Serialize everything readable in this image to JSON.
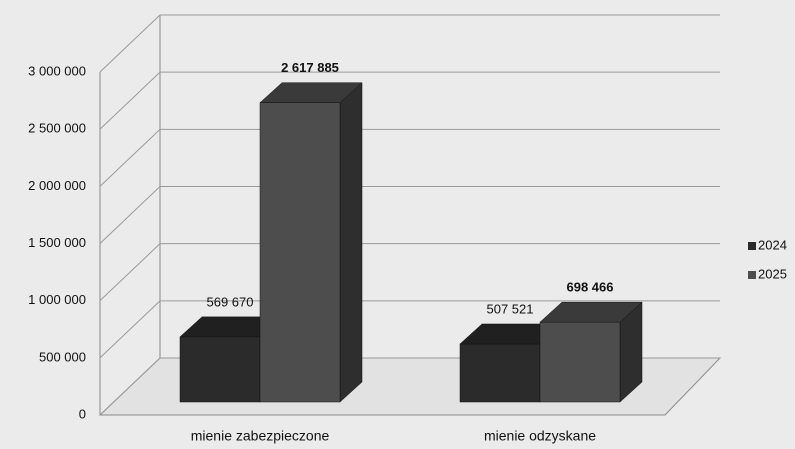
{
  "chart_data": {
    "type": "bar3d",
    "categories": [
      "mienie zabezpieczone",
      "mienie odzyskane"
    ],
    "series": [
      {
        "name": "2024",
        "color": "#2b2b2b",
        "values": [
          569670,
          507521
        ],
        "value_labels": [
          "569 670",
          "507 521"
        ]
      },
      {
        "name": "2025",
        "color": "#4d4d4d",
        "values": [
          2617885,
          698466
        ],
        "value_labels": [
          "2 617 885",
          "698 466"
        ]
      }
    ],
    "ylim": [
      0,
      3000000
    ],
    "yticks": [
      {
        "value": 0,
        "label": "0"
      },
      {
        "value": 500000,
        "label": "500 000"
      },
      {
        "value": 1000000,
        "label": "1 000 000"
      },
      {
        "value": 1500000,
        "label": "1 500 000"
      },
      {
        "value": 2000000,
        "label": "2 000 000"
      },
      {
        "value": 2500000,
        "label": "2 500 000"
      },
      {
        "value": 3000000,
        "label": "3 000 000"
      }
    ],
    "grid": true,
    "legend": "right"
  }
}
